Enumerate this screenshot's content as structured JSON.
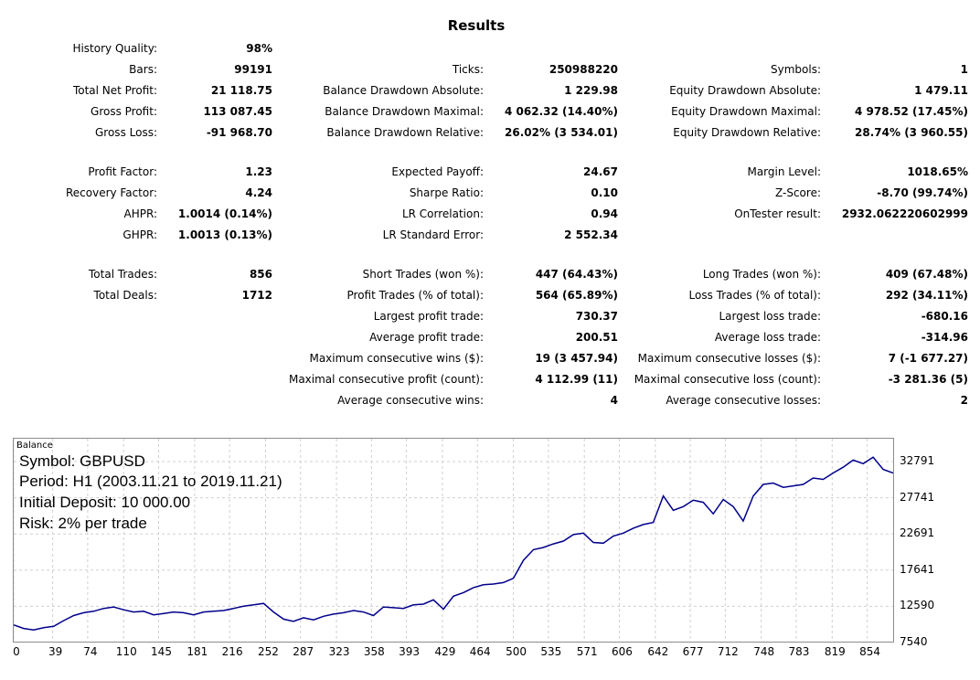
{
  "title": "Results",
  "rows": [
    {
      "y": 0,
      "c1": [
        "History Quality:",
        "98%"
      ],
      "c2": null,
      "c3": null
    },
    {
      "y": 1,
      "c1": [
        "Bars:",
        "99191"
      ],
      "c2": [
        "Ticks:",
        "250988220"
      ],
      "c3": [
        "Symbols:",
        "1"
      ]
    },
    {
      "y": 2,
      "c1": [
        "Total Net Profit:",
        "21 118.75"
      ],
      "c2": [
        "Balance Drawdown Absolute:",
        "1 229.98"
      ],
      "c3": [
        "Equity Drawdown Absolute:",
        "1 479.11"
      ]
    },
    {
      "y": 3,
      "c1": [
        "Gross Profit:",
        "113 087.45"
      ],
      "c2": [
        "Balance Drawdown Maximal:",
        "4 062.32 (14.40%)"
      ],
      "c3": [
        "Equity Drawdown Maximal:",
        "4 978.52 (17.45%)"
      ]
    },
    {
      "y": 4,
      "c1": [
        "Gross Loss:",
        "-91 968.70"
      ],
      "c2": [
        "Balance Drawdown Relative:",
        "26.02% (3 534.01)"
      ],
      "c3": [
        "Equity Drawdown Relative:",
        "28.74% (3 960.55)"
      ]
    },
    {
      "y": 5,
      "c1": [
        "Profit Factor:",
        "1.23"
      ],
      "c2": [
        "Expected Payoff:",
        "24.67"
      ],
      "c3": [
        "Margin Level:",
        "1018.65%"
      ]
    },
    {
      "y": 6,
      "c1": [
        "Recovery Factor:",
        "4.24"
      ],
      "c2": [
        "Sharpe Ratio:",
        "0.10"
      ],
      "c3": [
        "Z-Score:",
        "-8.70 (99.74%)"
      ]
    },
    {
      "y": 7,
      "c1": [
        "AHPR:",
        "1.0014 (0.14%)"
      ],
      "c2": [
        "LR Correlation:",
        "0.94"
      ],
      "c3": [
        "OnTester result:",
        "2932.062220602999"
      ]
    },
    {
      "y": 8,
      "c1": [
        "GHPR:",
        "1.0013 (0.13%)"
      ],
      "c2": [
        "LR Standard Error:",
        "2 552.34"
      ],
      "c3": null
    },
    {
      "y": 9,
      "c1": [
        "Total Trades:",
        "856"
      ],
      "c2": [
        "Short Trades (won %):",
        "447 (64.43%)"
      ],
      "c3": [
        "Long Trades (won %):",
        "409 (67.48%)"
      ]
    },
    {
      "y": 10,
      "c1": [
        "Total Deals:",
        "1712"
      ],
      "c2": [
        "Profit Trades (% of total):",
        "564 (65.89%)"
      ],
      "c3": [
        "Loss Trades (% of total):",
        "292 (34.11%)"
      ]
    },
    {
      "y": 11,
      "c1": null,
      "c2": [
        "Largest profit trade:",
        "730.37"
      ],
      "c3": [
        "Largest loss trade:",
        "-680.16"
      ]
    },
    {
      "y": 12,
      "c1": null,
      "c2": [
        "Average profit trade:",
        "200.51"
      ],
      "c3": [
        "Average loss trade:",
        "-314.96"
      ]
    },
    {
      "y": 13,
      "c1": null,
      "c2": [
        "Maximum consecutive wins ($):",
        "19 (3 457.94)"
      ],
      "c3": [
        "Maximum consecutive losses ($):",
        "7 (-1 677.27)"
      ]
    },
    {
      "y": 14,
      "c1": null,
      "c2": [
        "Maximal consecutive profit (count):",
        "4 112.99 (11)"
      ],
      "c3": [
        "Maximal consecutive loss (count):",
        "-3 281.36 (5)"
      ]
    },
    {
      "y": 15,
      "c1": null,
      "c2": [
        "Average consecutive wins:",
        "4"
      ],
      "c3": [
        "Average consecutive losses:",
        "2"
      ]
    }
  ],
  "chart": {
    "name": "Balance",
    "overlay": [
      "Symbol: GBPUSD",
      "Period: H1 (2003.11.21 to 2019.11.21)",
      "Initial Deposit: 10 000.00",
      "Risk: 2% per trade"
    ],
    "line_color": "#00008b"
  },
  "chart_data": {
    "type": "line",
    "title": "Balance",
    "xlabel": "",
    "ylabel": "",
    "ylim": [
      7540,
      35000
    ],
    "xlim": [
      0,
      880
    ],
    "x_ticks": [
      0,
      39,
      74,
      110,
      145,
      181,
      216,
      252,
      287,
      323,
      358,
      393,
      429,
      464,
      500,
      535,
      571,
      606,
      642,
      677,
      712,
      748,
      783,
      819,
      854
    ],
    "y_ticks": [
      7540,
      12590,
      17641,
      22691,
      27741,
      32791
    ],
    "grid": true,
    "series": [
      {
        "x": [
          0,
          10,
          20,
          30,
          40,
          50,
          60,
          70,
          80,
          90,
          100,
          110,
          120,
          130,
          140,
          150,
          160,
          170,
          180,
          190,
          200,
          210,
          220,
          230,
          240,
          250,
          260,
          270,
          280,
          290,
          300,
          310,
          320,
          330,
          340,
          350,
          360,
          370,
          380,
          390,
          400,
          410,
          420,
          430,
          440,
          450,
          460,
          470,
          480,
          490,
          500,
          510,
          520,
          530,
          540,
          550,
          560,
          570,
          580,
          590,
          600,
          610,
          620,
          630,
          640,
          650,
          660,
          670,
          680,
          690,
          700,
          710,
          720,
          730,
          740,
          750,
          760,
          770,
          780,
          790,
          800,
          810,
          820,
          830,
          840,
          850,
          860,
          870,
          880
        ],
        "values": [
          10000,
          9500,
          9300,
          9600,
          9800,
          10600,
          11300,
          11700,
          11900,
          12300,
          12500,
          12100,
          11800,
          11900,
          11400,
          11600,
          11800,
          11700,
          11400,
          11800,
          11900,
          12000,
          12300,
          12600,
          12800,
          13000,
          11800,
          10800,
          10500,
          11000,
          10700,
          11200,
          11500,
          11700,
          12000,
          11800,
          11300,
          12500,
          12400,
          12300,
          12800,
          12900,
          13500,
          12200,
          14000,
          14500,
          15200,
          15600,
          15700,
          15900,
          16500,
          19000,
          20500,
          20800,
          21300,
          21700,
          22600,
          22800,
          21500,
          21400,
          22400,
          22800,
          23500,
          24000,
          24300,
          28000,
          26000,
          26500,
          27400,
          27100,
          25500,
          27500,
          26500,
          24500,
          28000,
          29600,
          29800,
          29200,
          29400,
          29600,
          30500,
          30300,
          31200,
          32000,
          33000,
          32500,
          33400,
          31700,
          31200
        ]
      }
    ]
  }
}
